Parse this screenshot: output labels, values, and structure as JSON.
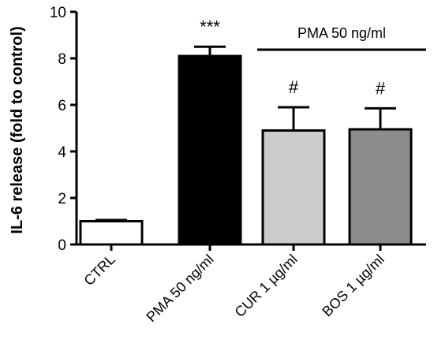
{
  "chart_data": {
    "type": "bar",
    "title": "",
    "xlabel": "",
    "ylabel": "IL-6 release (fold to control)",
    "ylim": [
      0,
      10
    ],
    "yticks": [
      0,
      2,
      4,
      6,
      8,
      10
    ],
    "grid": false,
    "categories": [
      "CTRL",
      "PMA 50 ng/ml",
      "CUR 1 µg/ml",
      "BOS 1 µg/ml"
    ],
    "values": [
      1.0,
      8.1,
      4.9,
      4.95
    ],
    "errors": [
      0.05,
      0.4,
      1.0,
      0.9
    ],
    "annotations": [
      "",
      "***",
      "#",
      "#"
    ],
    "bracket": {
      "label": "PMA 50 ng/ml",
      "from_category": 1,
      "to_category": 3
    },
    "colors": [
      "#ffffff",
      "#000000",
      "#cccccc",
      "#8c8c8c"
    ],
    "stroke_color": "#000000"
  }
}
